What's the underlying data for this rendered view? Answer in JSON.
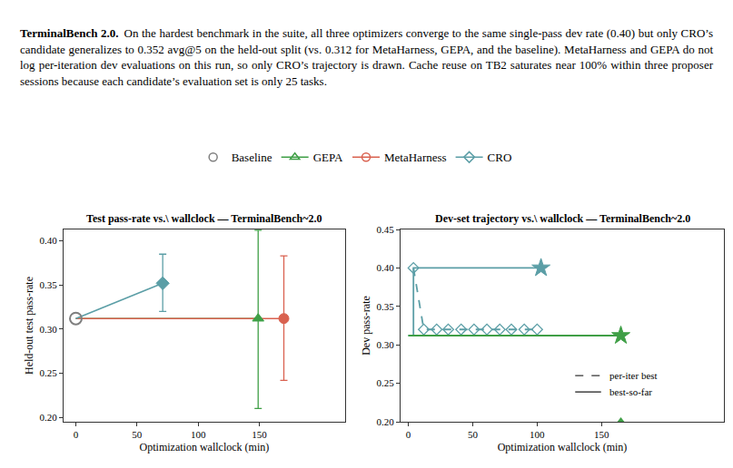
{
  "paragraph": {
    "heading": "TerminalBench 2.0.",
    "text": "On the hardest benchmark in the suite, all three optimizers converge to the same single-pass dev rate (0.40) but only CRO’s candidate generalizes to 0.352 avg@5 on the held-out split (vs. 0.312 for MetaHarness, GEPA, and the baseline). MetaHarness and GEPA do not log per-iteration dev evaluations on this run, so only CRO’s trajectory is drawn. Cache reuse on TB2 saturates near 100% within three proposer sessions because each candidate’s evaluation set is only 25 tasks."
  },
  "legend": "top",
  "chart_data": [
    {
      "type": "line",
      "title": "Test pass-rate vs.\\ wallclock — TerminalBench~2.0",
      "x_label": "Optimization wallclock (min)",
      "y_label": "Held-out test pass-rate",
      "xlim": [
        -10,
        220
      ],
      "xticks": [
        0,
        50,
        100,
        150
      ],
      "ylim": [
        0.195,
        0.413
      ],
      "yticks": [
        {
          "value": 0.2,
          "label": "0.20"
        },
        {
          "value": 0.25,
          "label": "0.25"
        },
        {
          "value": 0.3,
          "label": "0.30"
        },
        {
          "value": 0.35,
          "label": "0.35"
        },
        {
          "value": 0.4,
          "label": "0.40"
        }
      ],
      "series": [
        {
          "name": "Baseline",
          "color": "#7f7f7f",
          "marker": "circle-open",
          "x": [
            0
          ],
          "values": [
            0.312
          ]
        },
        {
          "name": "GEPA",
          "color": "#3f9f46",
          "marker": "triangle-up",
          "x": [
            0,
            149
          ],
          "values": [
            0.312,
            0.312
          ],
          "error_low": [
            null,
            0.21
          ],
          "error_high": [
            null,
            0.412
          ]
        },
        {
          "name": "MetaHarness",
          "color": "#d9614f",
          "marker": "circle",
          "x": [
            0,
            170
          ],
          "values": [
            0.312,
            0.312
          ],
          "error_low": [
            null,
            0.242
          ],
          "error_high": [
            null,
            0.383
          ]
        },
        {
          "name": "CRO",
          "color": "#5b9ea6",
          "marker": "diamond",
          "x": [
            0,
            71
          ],
          "values": [
            0.312,
            0.352
          ],
          "error_low": [
            null,
            0.32
          ],
          "error_high": [
            null,
            0.385
          ]
        }
      ]
    },
    {
      "type": "line",
      "title": "Dev-set trajectory vs.\\ wallclock — TerminalBench~2.0",
      "x_label": "Optimization wallclock (min)",
      "y_label": "Dev pass-rate",
      "xlim": [
        -6,
        245
      ],
      "xticks": [
        0,
        50,
        100,
        150
      ],
      "ylim": [
        0.2,
        0.45
      ],
      "yticks": [
        {
          "value": 0.2,
          "label": "0.20"
        },
        {
          "value": 0.25,
          "label": "0.25"
        },
        {
          "value": 0.3,
          "label": "0.30"
        },
        {
          "value": 0.35,
          "label": "0.35"
        },
        {
          "value": 0.4,
          "label": "0.40"
        },
        {
          "value": 0.45,
          "label": "0.45"
        }
      ],
      "series": [
        {
          "name": "CRO",
          "color": "#5b9ea6",
          "line_style": "dashed",
          "marker": "diamond-open",
          "x": [
            4,
            12,
            22,
            31,
            41,
            51,
            61,
            71,
            80,
            90,
            100
          ],
          "values": [
            0.4,
            0.32,
            0.32,
            0.32,
            0.32,
            0.32,
            0.32,
            0.32,
            0.32,
            0.32,
            0.32
          ]
        },
        {
          "name": "CRO",
          "color": "#5b9ea6",
          "line_style": "solid",
          "marker": "star",
          "x": [
            0,
            4,
            103
          ],
          "values": [
            0.312,
            0.4,
            0.4
          ]
        },
        {
          "name": "GEPA",
          "color": "#3f9f46",
          "line_style": "solid",
          "marker": "star",
          "x": [
            0,
            165
          ],
          "values": [
            0.312,
            0.312
          ]
        },
        {
          "name": "GEPA",
          "color": "#3f9f46",
          "marker": "triangle-up",
          "x": [
            165
          ],
          "values": [
            0.2
          ]
        }
      ],
      "line_style_key": [
        {
          "label": "per-iter best",
          "line_style": "dashed"
        },
        {
          "label": "best-so-far",
          "line_style": "solid"
        }
      ]
    }
  ]
}
